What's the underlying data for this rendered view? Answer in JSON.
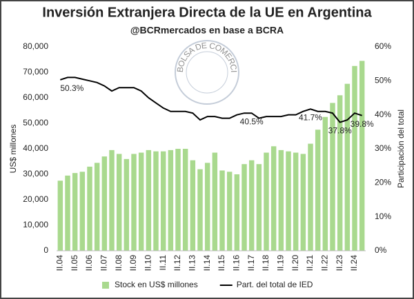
{
  "chart_data": {
    "type": "bar_line",
    "title": "Inversión Extranjera Directa de la UE en Argentina",
    "subtitle": "@BCRmercados en base a BCRA",
    "watermark": "BOLSA DE COMERCIO DE ROSARIO",
    "y_label": "US$ millones",
    "y2_label": "Participación del total",
    "categories": [
      "II.04",
      null,
      "II.05",
      null,
      "II.06",
      null,
      "II.07",
      null,
      "II.08",
      null,
      "II.09",
      null,
      "II.10",
      null,
      "II.11",
      null,
      "II.12",
      null,
      "II.13",
      null,
      "II.14",
      null,
      "II.15",
      null,
      "II.16",
      null,
      "II.17",
      null,
      "II.18",
      null,
      "II.19",
      null,
      "II.20",
      null,
      "II.21",
      null,
      "II.22",
      null,
      "II.23",
      null,
      "II.24",
      null
    ],
    "series": [
      {
        "name": "Stock en US$ millones",
        "type": "bar",
        "color": "#a9d98e",
        "values": [
          27500,
          29500,
          30500,
          31000,
          33000,
          34500,
          37000,
          39500,
          38000,
          36000,
          38000,
          38500,
          39500,
          39000,
          39000,
          39500,
          40000,
          40000,
          35500,
          32000,
          34500,
          38500,
          31500,
          31000,
          30000,
          34000,
          35500,
          34000,
          38500,
          41000,
          39500,
          39000,
          38500,
          38000,
          42000,
          47500,
          52500,
          58000,
          61000,
          65500,
          72500,
          74500
        ]
      },
      {
        "name": "Part. del total de IED",
        "type": "line",
        "axis": "y2",
        "color": "#000000",
        "values": [
          50.3,
          51,
          51,
          50.5,
          50,
          49.5,
          48.5,
          47,
          48,
          48,
          48,
          47,
          45,
          43.5,
          42,
          41,
          41,
          41,
          40.5,
          38.5,
          39.5,
          39.5,
          39,
          39,
          40,
          40.5,
          40.5,
          39,
          39.5,
          39.5,
          39.5,
          40,
          40,
          41,
          41.7,
          41,
          41,
          40.5,
          37.8,
          38.5,
          40.5,
          39.8
        ],
        "value_labels": [
          "50.3%",
          null,
          null,
          null,
          null,
          null,
          null,
          null,
          null,
          null,
          null,
          null,
          null,
          null,
          null,
          null,
          null,
          null,
          null,
          null,
          null,
          null,
          null,
          null,
          null,
          null,
          "40.5%",
          null,
          null,
          null,
          null,
          null,
          null,
          null,
          "41.7%",
          null,
          null,
          null,
          "37.8%",
          null,
          null,
          "39.8%"
        ]
      }
    ],
    "ylim": [
      0,
      80000
    ],
    "yticks": [
      {
        "value": 0,
        "label": "0"
      },
      {
        "value": 10000,
        "label": "10,000"
      },
      {
        "value": 20000,
        "label": "20,000"
      },
      {
        "value": 30000,
        "label": "30,000"
      },
      {
        "value": 40000,
        "label": "40,000"
      },
      {
        "value": 50000,
        "label": "50,000"
      },
      {
        "value": 60000,
        "label": "60,000"
      },
      {
        "value": 70000,
        "label": "70,000"
      },
      {
        "value": 80000,
        "label": "80,000"
      }
    ],
    "y2lim": [
      0,
      60
    ],
    "y2ticks": [
      {
        "value": 0,
        "label": "0%"
      },
      {
        "value": 10,
        "label": "10%"
      },
      {
        "value": 20,
        "label": "20%"
      },
      {
        "value": 30,
        "label": "30%"
      },
      {
        "value": 40,
        "label": "40%"
      },
      {
        "value": 50,
        "label": "50%"
      },
      {
        "value": 60,
        "label": "60%"
      }
    ],
    "legend": "bottom"
  }
}
